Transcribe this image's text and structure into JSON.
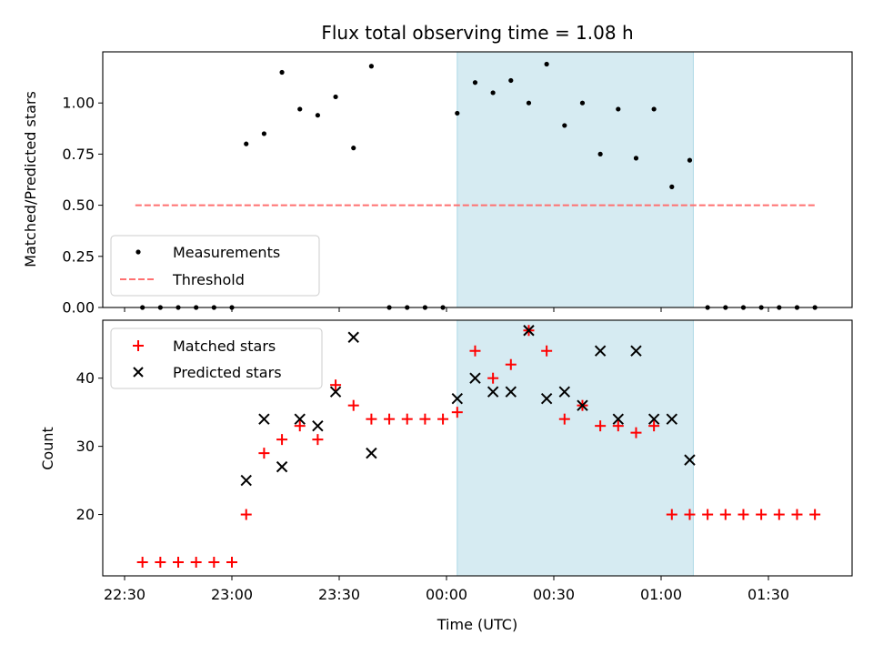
{
  "chart_data": [
    {
      "type": "scatter",
      "title": "Flux total observing time = 1.08 h",
      "xlabel": "",
      "ylabel": "Matched/Predicted stars",
      "ylim": [
        0,
        1.25
      ],
      "yticks": [
        "0.00",
        "0.25",
        "0.50",
        "0.75",
        "1.00"
      ],
      "grid": false,
      "legend_position": "lower-left",
      "highlight_band": {
        "start": "00:03",
        "end": "01:09",
        "color": "#add8e6"
      },
      "series": [
        {
          "name": "Measurements",
          "marker": "dot",
          "color": "#000000",
          "points": [
            [
              "22:35",
              0
            ],
            [
              "22:40",
              0
            ],
            [
              "22:45",
              0
            ],
            [
              "22:50",
              0
            ],
            [
              "22:55",
              0
            ],
            [
              "23:00",
              0
            ],
            [
              "23:04",
              0.8
            ],
            [
              "23:09",
              0.85
            ],
            [
              "23:14",
              1.15
            ],
            [
              "23:19",
              0.97
            ],
            [
              "23:24",
              0.94
            ],
            [
              "23:29",
              1.03
            ],
            [
              "23:34",
              0.78
            ],
            [
              "23:39",
              1.18
            ],
            [
              "23:44",
              0
            ],
            [
              "23:49",
              0
            ],
            [
              "23:54",
              0
            ],
            [
              "23:59",
              0
            ],
            [
              "00:03",
              0.95
            ],
            [
              "00:08",
              1.1
            ],
            [
              "00:13",
              1.05
            ],
            [
              "00:18",
              1.11
            ],
            [
              "00:23",
              1.0
            ],
            [
              "00:28",
              1.19
            ],
            [
              "00:33",
              0.89
            ],
            [
              "00:38",
              1.0
            ],
            [
              "00:43",
              0.75
            ],
            [
              "00:48",
              0.97
            ],
            [
              "00:53",
              0.73
            ],
            [
              "00:58",
              0.97
            ],
            [
              "01:03",
              0.59
            ],
            [
              "01:08",
              0.72
            ],
            [
              "01:13",
              0
            ],
            [
              "01:18",
              0
            ],
            [
              "01:23",
              0
            ],
            [
              "01:28",
              0
            ],
            [
              "01:33",
              0
            ],
            [
              "01:38",
              0
            ],
            [
              "01:43",
              0
            ]
          ]
        },
        {
          "name": "Threshold",
          "marker": "dashed-line",
          "color": "#ff7070",
          "points": [
            [
              "22:33",
              0.5
            ],
            [
              "01:43",
              0.5
            ]
          ]
        }
      ]
    },
    {
      "type": "scatter",
      "title": "",
      "xlabel": "Time (UTC)",
      "ylabel": "Count",
      "ylim": [
        11,
        48.5
      ],
      "yticks": [
        "20",
        "30",
        "40"
      ],
      "xticks": [
        "22:30",
        "23:00",
        "23:30",
        "00:00",
        "00:30",
        "01:00",
        "01:30"
      ],
      "grid": false,
      "legend_position": "upper-left",
      "highlight_band": {
        "start": "00:03",
        "end": "01:09",
        "color": "#add8e6"
      },
      "series": [
        {
          "name": "Matched stars",
          "marker": "plus",
          "color": "#ff0000",
          "points": [
            [
              "22:35",
              13
            ],
            [
              "22:40",
              13
            ],
            [
              "22:45",
              13
            ],
            [
              "22:50",
              13
            ],
            [
              "22:55",
              13
            ],
            [
              "23:00",
              13
            ],
            [
              "23:04",
              20
            ],
            [
              "23:09",
              29
            ],
            [
              "23:14",
              31
            ],
            [
              "23:19",
              33
            ],
            [
              "23:24",
              31
            ],
            [
              "23:29",
              39
            ],
            [
              "23:34",
              36
            ],
            [
              "23:39",
              34
            ],
            [
              "23:44",
              34
            ],
            [
              "23:49",
              34
            ],
            [
              "23:54",
              34
            ],
            [
              "23:59",
              34
            ],
            [
              "00:03",
              35
            ],
            [
              "00:08",
              44
            ],
            [
              "00:13",
              40
            ],
            [
              "00:18",
              42
            ],
            [
              "00:23",
              47
            ],
            [
              "00:28",
              44
            ],
            [
              "00:33",
              34
            ],
            [
              "00:38",
              36
            ],
            [
              "00:43",
              33
            ],
            [
              "00:48",
              33
            ],
            [
              "00:53",
              32
            ],
            [
              "00:58",
              33
            ],
            [
              "01:03",
              20
            ],
            [
              "01:08",
              20
            ],
            [
              "01:13",
              20
            ],
            [
              "01:18",
              20
            ],
            [
              "01:23",
              20
            ],
            [
              "01:28",
              20
            ],
            [
              "01:33",
              20
            ],
            [
              "01:38",
              20
            ],
            [
              "01:43",
              20
            ]
          ]
        },
        {
          "name": "Predicted stars",
          "marker": "x",
          "color": "#000000",
          "points": [
            [
              "23:04",
              25
            ],
            [
              "23:09",
              34
            ],
            [
              "23:14",
              27
            ],
            [
              "23:19",
              34
            ],
            [
              "23:24",
              33
            ],
            [
              "23:29",
              38
            ],
            [
              "23:34",
              46
            ],
            [
              "23:39",
              29
            ],
            [
              "00:03",
              37
            ],
            [
              "00:08",
              40
            ],
            [
              "00:13",
              38
            ],
            [
              "00:18",
              38
            ],
            [
              "00:23",
              47
            ],
            [
              "00:28",
              37
            ],
            [
              "00:33",
              38
            ],
            [
              "00:38",
              36
            ],
            [
              "00:43",
              44
            ],
            [
              "00:48",
              34
            ],
            [
              "00:53",
              44
            ],
            [
              "00:58",
              34
            ],
            [
              "01:03",
              34
            ],
            [
              "01:08",
              28
            ]
          ]
        }
      ]
    }
  ]
}
